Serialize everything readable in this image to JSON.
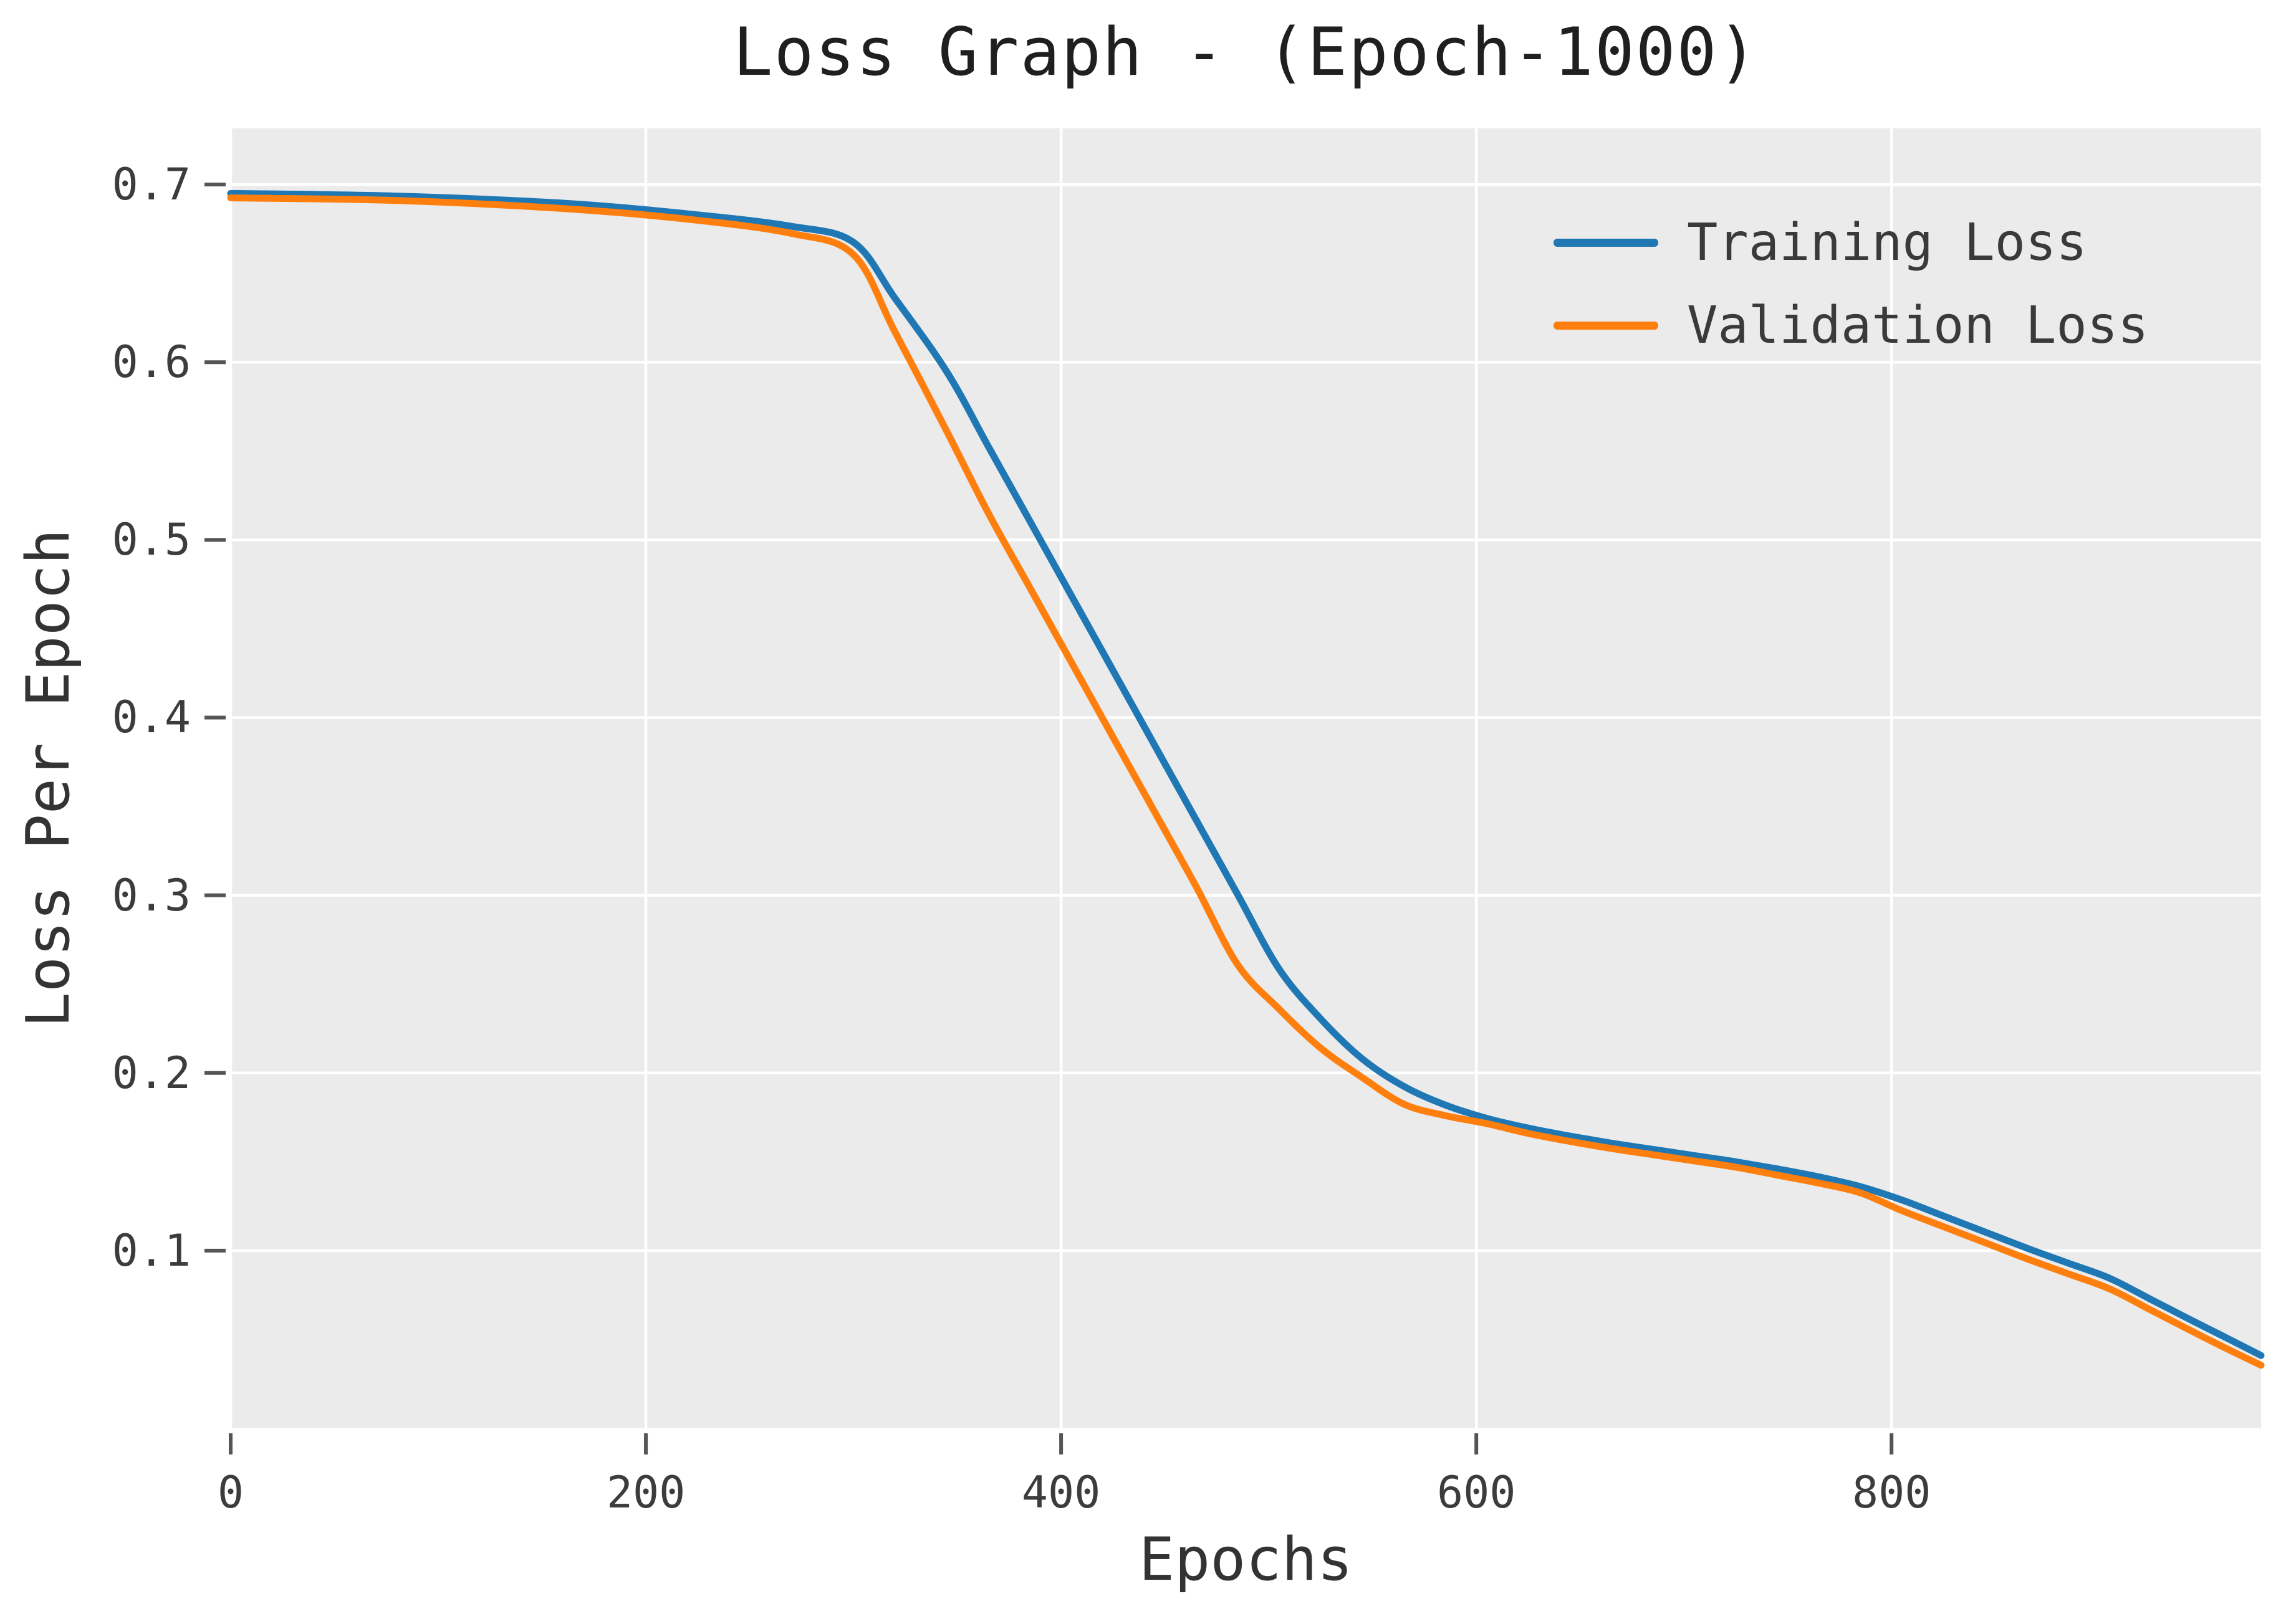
{
  "title": "Loss Graph - (Epoch-1000)",
  "chart_data": {
    "type": "line",
    "title": "Loss Graph - (Epoch-1000)",
    "xlabel": "Epochs",
    "ylabel": "Loss Per Epoch",
    "xlim": [
      0,
      978
    ],
    "ylim": [
      0,
      0.7316
    ],
    "grid": true,
    "legend_position": "upper-right",
    "plot_background": "#ebebeb",
    "grid_color": "#ffffff",
    "tick_color": "#555555",
    "x_ticks": [
      {
        "value": 0,
        "label": "0"
      },
      {
        "value": 200,
        "label": "200"
      },
      {
        "value": 400,
        "label": "400"
      },
      {
        "value": 600,
        "label": "600"
      },
      {
        "value": 800,
        "label": "800"
      }
    ],
    "y_ticks": [
      {
        "value": 0.1,
        "label": "0.1"
      },
      {
        "value": 0.2,
        "label": "0.2"
      },
      {
        "value": 0.3,
        "label": "0.3"
      },
      {
        "value": 0.4,
        "label": "0.4"
      },
      {
        "value": 0.5,
        "label": "0.5"
      },
      {
        "value": 0.6,
        "label": "0.6"
      },
      {
        "value": 0.7,
        "label": "0.7"
      }
    ],
    "series": [
      {
        "name": "Training Loss",
        "color": "#1f77b4",
        "points": [
          [
            0,
            0.695
          ],
          [
            80,
            0.6935
          ],
          [
            160,
            0.6895
          ],
          [
            220,
            0.6835
          ],
          [
            270,
            0.6765
          ],
          [
            300,
            0.6675
          ],
          [
            320,
            0.636
          ],
          [
            345,
            0.5945
          ],
          [
            365,
            0.5525
          ],
          [
            385,
            0.5105
          ],
          [
            405,
            0.4685
          ],
          [
            425,
            0.4265
          ],
          [
            445,
            0.3845
          ],
          [
            465,
            0.3425
          ],
          [
            485,
            0.3005
          ],
          [
            505,
            0.2585
          ],
          [
            525,
            0.2305
          ],
          [
            545,
            0.208
          ],
          [
            565,
            0.1925
          ],
          [
            585,
            0.182
          ],
          [
            605,
            0.1745
          ],
          [
            625,
            0.169
          ],
          [
            645,
            0.1645
          ],
          [
            665,
            0.1605
          ],
          [
            685,
            0.157
          ],
          [
            705,
            0.1535
          ],
          [
            725,
            0.15
          ],
          [
            745,
            0.146
          ],
          [
            765,
            0.1415
          ],
          [
            785,
            0.136
          ],
          [
            805,
            0.1285
          ],
          [
            825,
            0.1195
          ],
          [
            845,
            0.1105
          ],
          [
            865,
            0.1015
          ],
          [
            885,
            0.093
          ],
          [
            905,
            0.0845
          ],
          [
            925,
            0.0725
          ],
          [
            945,
            0.0605
          ],
          [
            962,
            0.0505
          ],
          [
            978,
            0.041
          ]
        ]
      },
      {
        "name": "Validation Loss",
        "color": "#ff7f0e",
        "points": [
          [
            0,
            0.6925
          ],
          [
            80,
            0.691
          ],
          [
            160,
            0.6865
          ],
          [
            220,
            0.6805
          ],
          [
            270,
            0.6725
          ],
          [
            300,
            0.6605
          ],
          [
            320,
            0.617
          ],
          [
            345,
            0.561
          ],
          [
            365,
            0.515
          ],
          [
            385,
            0.473
          ],
          [
            405,
            0.431
          ],
          [
            425,
            0.389
          ],
          [
            445,
            0.347
          ],
          [
            465,
            0.305
          ],
          [
            485,
            0.261
          ],
          [
            505,
            0.236
          ],
          [
            525,
            0.214
          ],
          [
            545,
            0.1975
          ],
          [
            565,
            0.1825
          ],
          [
            585,
            0.176
          ],
          [
            605,
            0.1715
          ],
          [
            625,
            0.166
          ],
          [
            645,
            0.1615
          ],
          [
            665,
            0.1575
          ],
          [
            685,
            0.154
          ],
          [
            705,
            0.1505
          ],
          [
            725,
            0.147
          ],
          [
            745,
            0.1425
          ],
          [
            765,
            0.138
          ],
          [
            785,
            0.1325
          ],
          [
            805,
            0.1225
          ],
          [
            825,
            0.1135
          ],
          [
            845,
            0.1045
          ],
          [
            865,
            0.0955
          ],
          [
            885,
            0.087
          ],
          [
            905,
            0.0785
          ],
          [
            925,
            0.0665
          ],
          [
            945,
            0.0545
          ],
          [
            962,
            0.0445
          ],
          [
            978,
            0.0355
          ]
        ]
      }
    ]
  },
  "legend": {
    "items": [
      {
        "label": "Training Loss",
        "color": "#1f77b4"
      },
      {
        "label": "Validation Loss",
        "color": "#ff7f0e"
      }
    ]
  }
}
